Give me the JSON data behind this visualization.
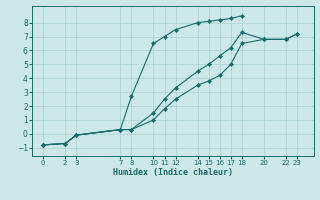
{
  "xlabel": "Humidex (Indice chaleur)",
  "bg_color": "#cce8e8",
  "grid_color_major": "#aad0d0",
  "grid_color_minor": "#bbdede",
  "line_color": "#1a6b6b",
  "xlim": [
    -1,
    24.5
  ],
  "ylim": [
    -1.6,
    9.2
  ],
  "xticks": [
    0,
    2,
    3,
    7,
    8,
    10,
    11,
    12,
    14,
    15,
    16,
    17,
    18,
    20,
    22,
    23
  ],
  "yticks": [
    -1,
    0,
    1,
    2,
    3,
    4,
    5,
    6,
    7,
    8
  ],
  "line1": {
    "x": [
      0,
      2,
      3,
      7,
      8,
      10,
      11,
      12,
      14,
      15,
      16,
      17,
      18
    ],
    "y": [
      -0.8,
      -0.7,
      -0.1,
      0.3,
      2.7,
      6.5,
      7.0,
      7.5,
      8.0,
      8.1,
      8.2,
      8.3,
      8.5
    ]
  },
  "line2": {
    "x": [
      0,
      2,
      3,
      7,
      8,
      10,
      11,
      12,
      14,
      15,
      16,
      17,
      18,
      20,
      22,
      23
    ],
    "y": [
      -0.8,
      -0.7,
      -0.1,
      0.3,
      0.3,
      1.5,
      2.5,
      3.3,
      4.5,
      5.0,
      5.6,
      6.2,
      7.3,
      6.8,
      6.8,
      7.2
    ]
  },
  "line3": {
    "x": [
      0,
      2,
      3,
      7,
      8,
      10,
      11,
      12,
      14,
      15,
      16,
      17,
      18,
      20,
      22,
      23
    ],
    "y": [
      -0.8,
      -0.7,
      -0.1,
      0.3,
      0.3,
      1.0,
      1.8,
      2.5,
      3.5,
      3.8,
      4.2,
      5.0,
      6.5,
      6.8,
      6.8,
      7.2
    ]
  }
}
